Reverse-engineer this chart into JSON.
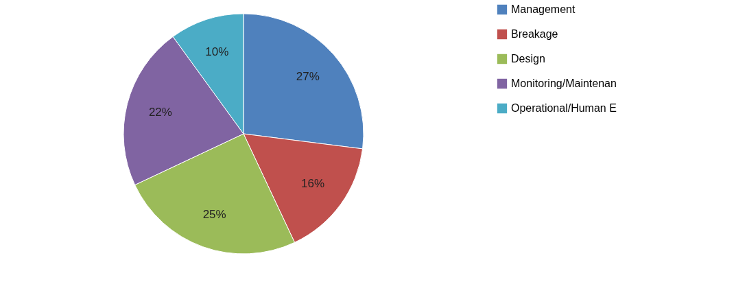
{
  "chart_data": {
    "type": "pie",
    "categories": [
      "Management",
      "Breakage",
      "Design",
      "Monitoring/Maintenan",
      "Operational/Human E"
    ],
    "values": [
      27,
      16,
      25,
      22,
      10
    ],
    "colors": [
      "#4f81bd",
      "#c0504d",
      "#9bbb59",
      "#8064a2",
      "#4bacc6"
    ],
    "value_labels": [
      "27%",
      "16%",
      "25%",
      "22%",
      "10%"
    ],
    "legend": "right"
  }
}
